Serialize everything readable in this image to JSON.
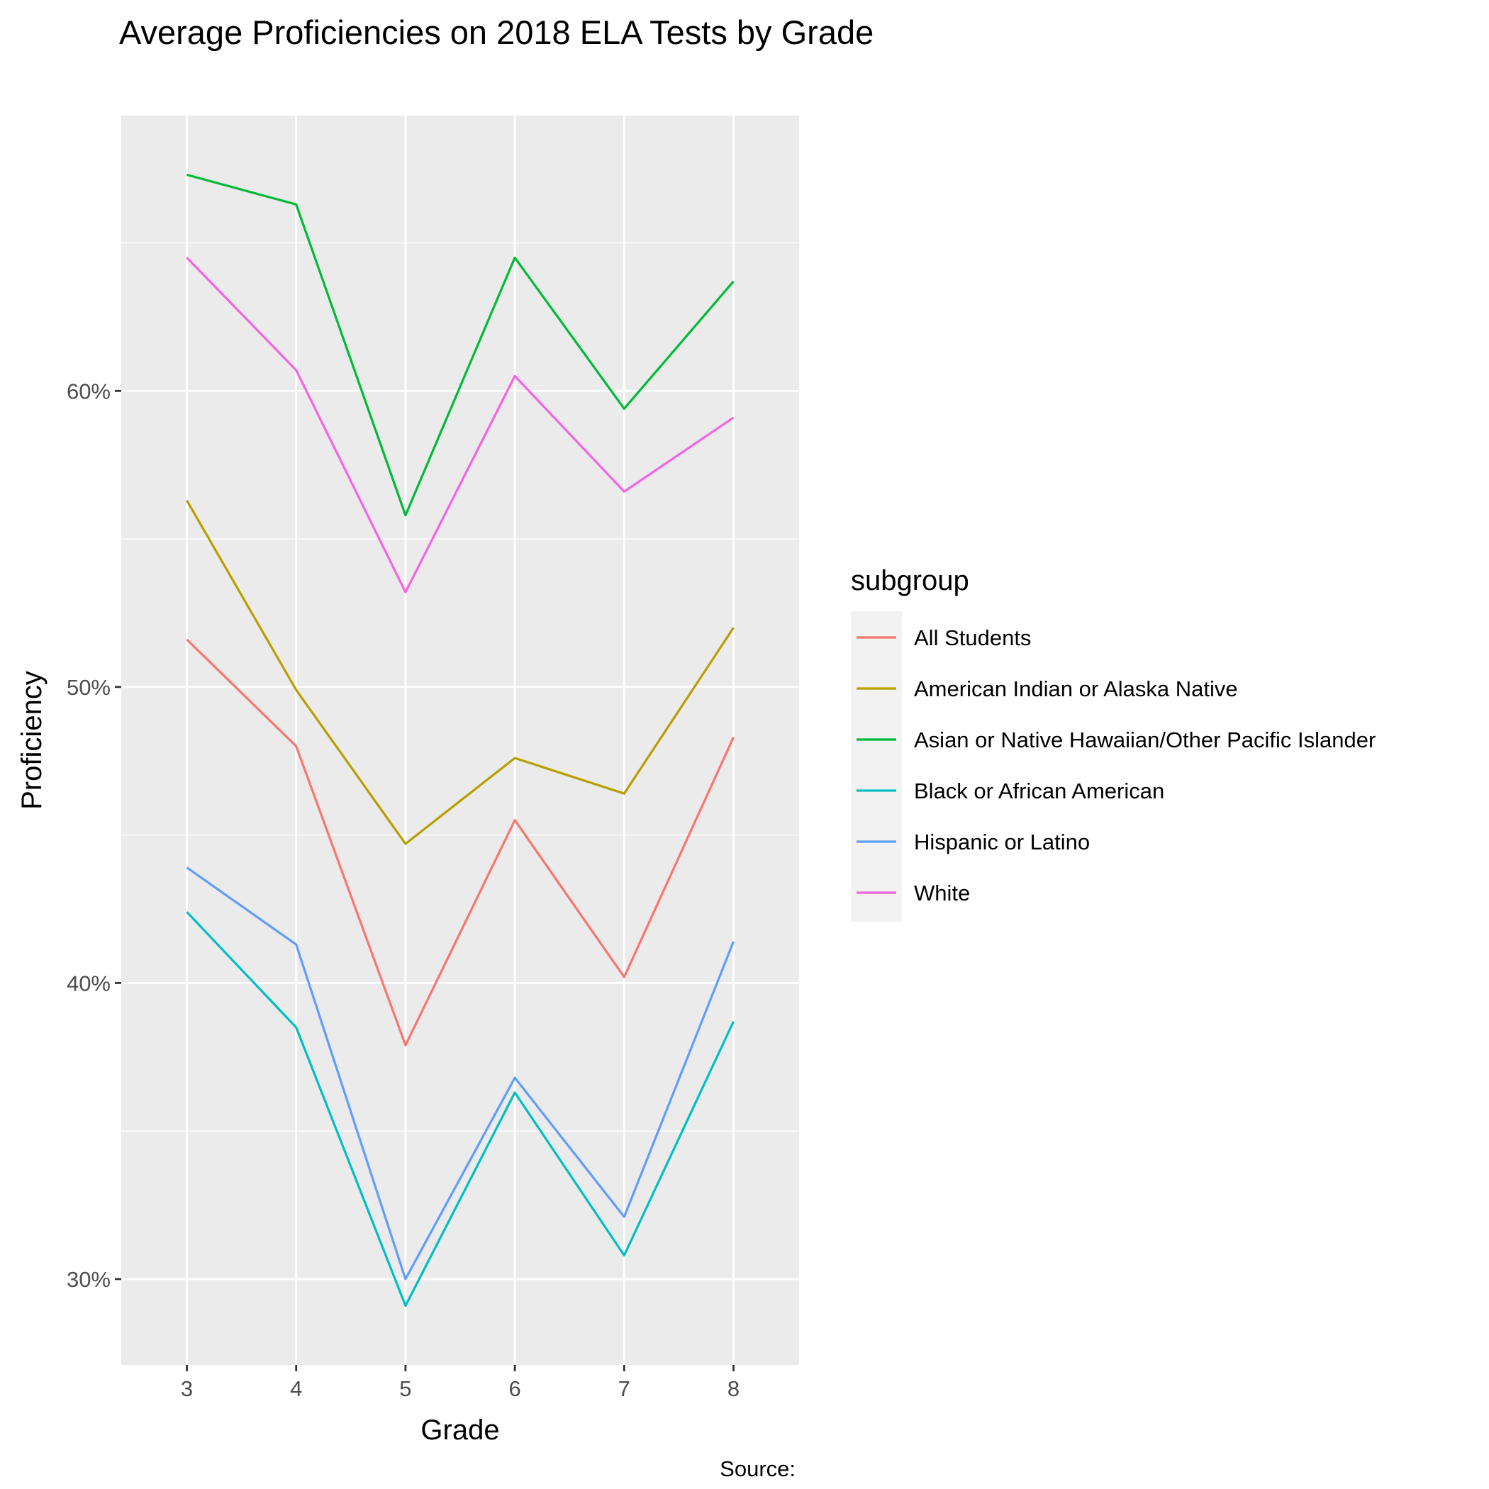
{
  "chart_data": {
    "type": "line",
    "title": "Average Proficiencies on 2018 ELA Tests by Grade",
    "xlabel": "Grade",
    "ylabel": "Proficiency",
    "caption": "Source:",
    "x": [
      3,
      4,
      5,
      6,
      7,
      8
    ],
    "x_tick_labels": [
      "3",
      "4",
      "5",
      "6",
      "7",
      "8"
    ],
    "y_ticks": [
      30,
      40,
      50,
      60
    ],
    "y_tick_labels": [
      "30%",
      "40%",
      "50%",
      "60%"
    ],
    "xlim": [
      2.4,
      8.6
    ],
    "ylim": [
      27.1,
      69.3
    ],
    "grid": true,
    "legend": {
      "title": "subgroup",
      "position": "right"
    },
    "series": [
      {
        "name": "All Students",
        "color": "#F8766D",
        "values": [
          51.6,
          48.0,
          37.9,
          45.5,
          40.2,
          48.3
        ]
      },
      {
        "name": "American Indian or Alaska Native",
        "color": "#B79F00",
        "values": [
          56.3,
          49.9,
          44.7,
          47.6,
          46.4,
          52.0
        ]
      },
      {
        "name": "Asian or Native Hawaiian/Other Pacific Islander",
        "color": "#00BA38",
        "values": [
          67.3,
          66.3,
          55.8,
          64.5,
          59.4,
          63.7
        ]
      },
      {
        "name": "Black or African American",
        "color": "#00BFC4",
        "values": [
          42.4,
          38.5,
          29.1,
          36.3,
          30.8,
          38.7
        ]
      },
      {
        "name": "Hispanic or Latino",
        "color": "#619CFF",
        "values": [
          43.9,
          41.3,
          30.0,
          36.8,
          32.1,
          41.4
        ]
      },
      {
        "name": "White",
        "color": "#F564E3",
        "values": [
          64.5,
          60.7,
          53.2,
          60.5,
          56.6,
          59.1
        ]
      }
    ]
  }
}
